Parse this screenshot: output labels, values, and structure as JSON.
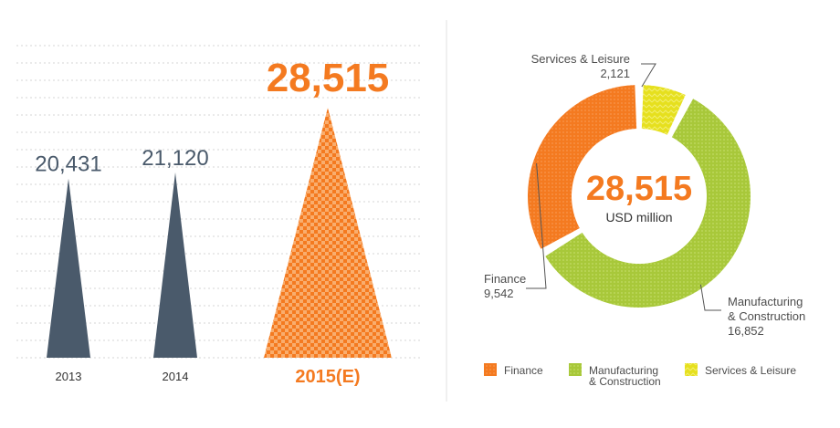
{
  "chart_data": [
    {
      "type": "bar",
      "bar_style": "triangle",
      "categories": [
        "2013",
        "2014",
        "2015(E)"
      ],
      "values": [
        20431,
        21120,
        28515
      ],
      "value_labels": [
        "20,431",
        "21,120",
        "28,515"
      ],
      "colors": [
        "#4a5a6b",
        "#4a5a6b",
        "#f47a20"
      ],
      "highlight_index": 2,
      "grid": "dotted horizontal",
      "title": "",
      "xlabel": "",
      "ylabel": ""
    },
    {
      "type": "pie",
      "style": "donut",
      "center_value": "28,515",
      "center_unit": "USD million",
      "total": 28515,
      "slices": [
        {
          "name": "Finance",
          "value": 9542,
          "value_label": "9,542",
          "color": "#f47a20"
        },
        {
          "name": "Manufacturing & Construction",
          "name_lines": [
            "Manufacturing",
            "& Construction"
          ],
          "value": 16852,
          "value_label": "16,852",
          "color": "#a8c83a"
        },
        {
          "name": "Services & Leisure",
          "value": 2121,
          "value_label": "2,121",
          "color": "#e6e01e"
        }
      ],
      "legend": {
        "placement": "bottom",
        "items": [
          {
            "lines": [
              "Finance"
            ],
            "color": "#f47a20"
          },
          {
            "lines": [
              "Manufacturing",
              "& Construction"
            ],
            "color": "#a8c83a"
          },
          {
            "lines": [
              "Services & Leisure"
            ],
            "color": "#e6e01e"
          }
        ]
      }
    }
  ],
  "colors": {
    "dark": "#4a5a6b",
    "accent": "#f47a20",
    "text": "#4d4d4d",
    "divider": "#e2e2e2"
  }
}
